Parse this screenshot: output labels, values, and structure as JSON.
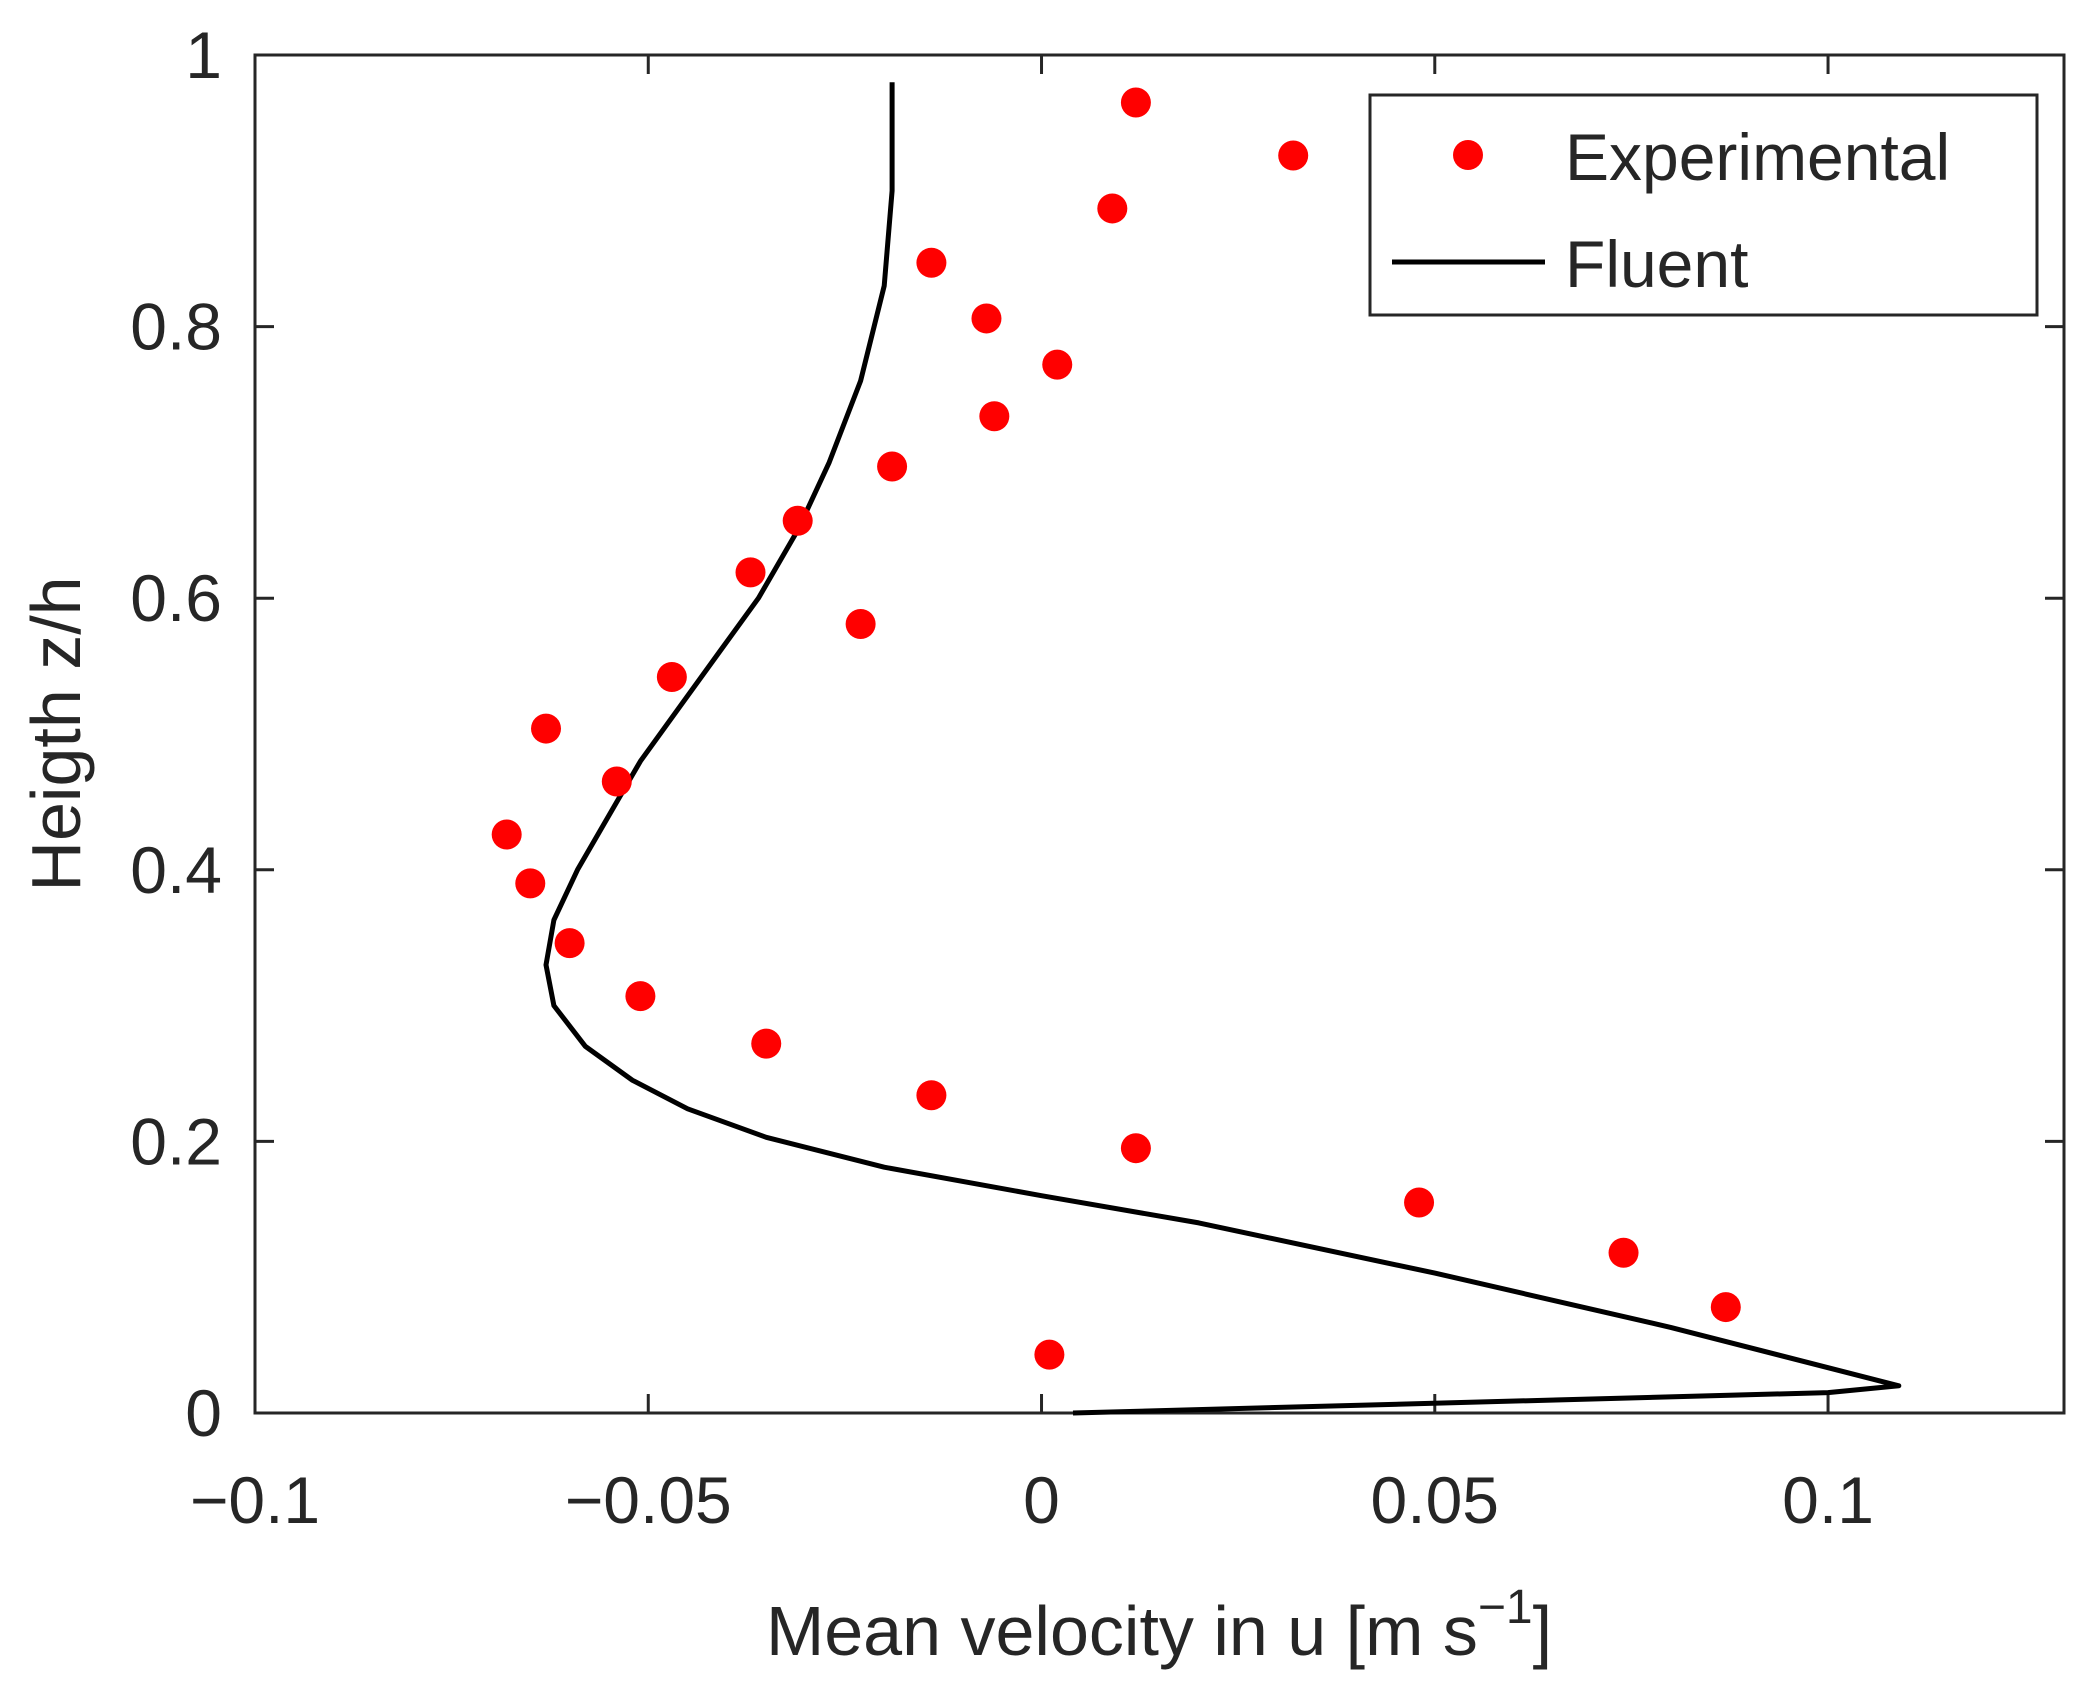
{
  "chart_data": {
    "type": "scatter",
    "xlabel": "Mean velocity in u [m s",
    "xlabel_sup": "−1",
    "xlabel_close": "]",
    "ylabel": "Heigth z/h",
    "xlim": [
      -0.1,
      0.13
    ],
    "ylim": [
      0,
      1
    ],
    "xticks": [
      -0.1,
      -0.05,
      0,
      0.05,
      0.1
    ],
    "xtick_labels": [
      "−0.1",
      "−0.05",
      "0",
      "0.05",
      "0.1"
    ],
    "yticks": [
      0,
      0.2,
      0.4,
      0.6,
      0.8,
      1
    ],
    "ytick_labels": [
      "0",
      "0.2",
      "0.4",
      "0.6",
      "0.8",
      "1"
    ],
    "grid": false,
    "legend_position": "top-right",
    "series": [
      {
        "name": "Experimental",
        "kind": "markers",
        "color": "#ff0000",
        "x": [
          0.001,
          0.087,
          0.074,
          0.048,
          0.012,
          -0.014,
          -0.035,
          -0.051,
          -0.06,
          -0.065,
          -0.068,
          -0.054,
          -0.063,
          -0.047,
          -0.023,
          -0.037,
          -0.031,
          -0.019,
          -0.006,
          0.002,
          -0.007,
          -0.014,
          0.009,
          0.032,
          0.012
        ],
        "y": [
          0.043,
          0.078,
          0.118,
          0.155,
          0.195,
          0.234,
          0.272,
          0.307,
          0.346,
          0.39,
          0.426,
          0.465,
          0.504,
          0.542,
          0.581,
          0.619,
          0.657,
          0.697,
          0.734,
          0.772,
          0.806,
          0.847,
          0.887,
          0.926,
          0.965
        ]
      },
      {
        "name": "Fluent",
        "kind": "line",
        "color": "#000000",
        "x": [
          0.004,
          0.1,
          0.109,
          0.08,
          0.05,
          0.02,
          0.0,
          -0.02,
          -0.035,
          -0.045,
          -0.052,
          -0.058,
          -0.062,
          -0.063,
          -0.062,
          -0.059,
          -0.055,
          -0.051,
          -0.046,
          -0.041,
          -0.036,
          -0.031,
          -0.027,
          -0.023,
          -0.02,
          -0.019,
          -0.019
        ],
        "y": [
          0.0,
          0.015,
          0.02,
          0.063,
          0.103,
          0.14,
          0.16,
          0.181,
          0.203,
          0.224,
          0.245,
          0.27,
          0.3,
          0.33,
          0.363,
          0.4,
          0.44,
          0.48,
          0.52,
          0.56,
          0.6,
          0.65,
          0.7,
          0.76,
          0.83,
          0.9,
          0.98
        ]
      }
    ]
  }
}
